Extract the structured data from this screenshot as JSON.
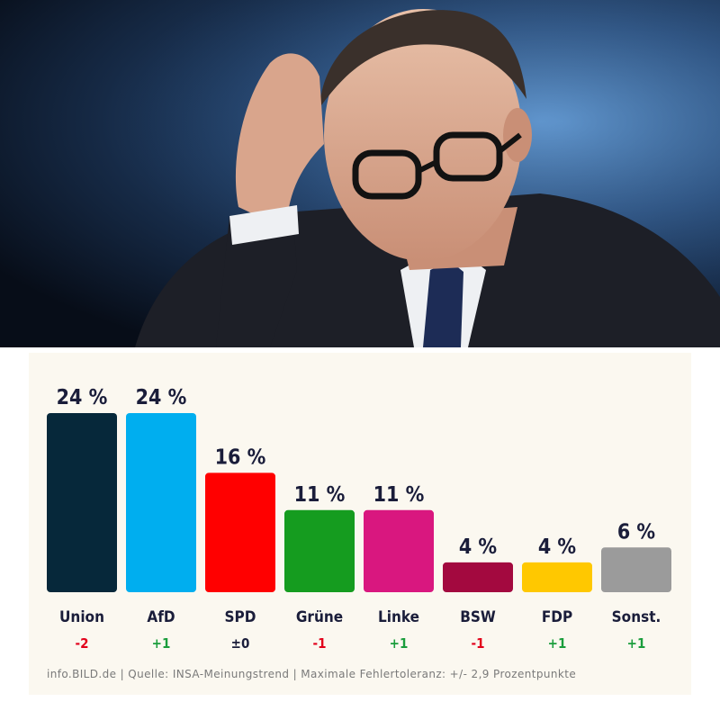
{
  "photo": {
    "description_icon": "politician-photo"
  },
  "source": "info.BILD.de | Quelle: INSA-Meinungstrend | Maximale Fehlertoleranz: +/- 2,9 Prozentpunkte",
  "chart_data": {
    "type": "bar",
    "categories": [
      "Union",
      "AfD",
      "SPD",
      "Grüne",
      "Linke",
      "BSW",
      "FDP",
      "Sonst."
    ],
    "values": [
      24,
      24,
      16,
      11,
      11,
      4,
      4,
      6
    ],
    "value_labels": [
      "24 %",
      "24 %",
      "16 %",
      "11 %",
      "11 %",
      "4 %",
      "4 %",
      "6 %"
    ],
    "changes": [
      "-2",
      "+1",
      "±0",
      "-1",
      "+1",
      "-1",
      "+1",
      "+1"
    ],
    "colors": [
      "#06283a",
      "#00aeef",
      "#ff0000",
      "#159c1f",
      "#d9177f",
      "#a3093f",
      "#ffc800",
      "#9b9b9b"
    ],
    "change_colors": {
      "negative": "#e2001a",
      "positive": "#1a9d3c",
      "neutral": "#1a1d3a"
    },
    "ylim": [
      0,
      24
    ]
  }
}
